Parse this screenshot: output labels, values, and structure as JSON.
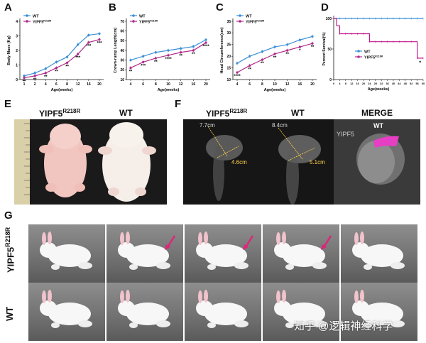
{
  "panels": {
    "A": "A",
    "B": "B",
    "C": "C",
    "D": "D",
    "E": "E",
    "F": "F",
    "G": "G"
  },
  "legend": {
    "wt": "WT",
    "mut_base": "YIPF5",
    "mut_sup": "R218R"
  },
  "chart_data": [
    {
      "type": "line",
      "ylabel": "Body Mass (Kg)",
      "xlabel": "Age(weeks)",
      "x": [
        1,
        2,
        4,
        6,
        8,
        12,
        16,
        20
      ],
      "xticks": [
        "1",
        "2",
        "4",
        "6",
        "8",
        "12",
        "16",
        "20"
      ],
      "ylim": [
        0,
        4
      ],
      "yticks": [
        "0",
        "1",
        "2",
        "3",
        "4"
      ],
      "series": [
        {
          "name": "WT",
          "values": [
            0.25,
            0.45,
            0.75,
            1.2,
            1.55,
            2.4,
            3.05,
            3.15
          ],
          "color": "#3a8fd6"
        },
        {
          "name": "YIPF5R218R",
          "values": [
            0.12,
            0.25,
            0.45,
            0.8,
            1.15,
            1.75,
            2.55,
            2.75
          ],
          "color": "#b02a8a"
        }
      ],
      "significance": [
        {
          "x": 1,
          "label": "**"
        },
        {
          "x": 2,
          "label": "**"
        },
        {
          "x": 4,
          "label": "**"
        },
        {
          "x": 6,
          "label": "**"
        },
        {
          "x": 8,
          "label": "**"
        },
        {
          "x": 12,
          "label": "***"
        },
        {
          "x": 16,
          "label": "***"
        },
        {
          "x": 20,
          "label": "***"
        }
      ]
    },
    {
      "type": "line",
      "ylabel": "Crown-rump Length(cm)",
      "xlabel": "Age(weeks)",
      "x": [
        4,
        6,
        8,
        10,
        12,
        16,
        20
      ],
      "xticks": [
        "4",
        "6",
        "8",
        "10",
        "12",
        "16",
        "20"
      ],
      "ylim": [
        10,
        70
      ],
      "yticks": [
        "10",
        "20",
        "30",
        "40",
        "50",
        "60",
        "70"
      ],
      "series": [
        {
          "name": "WT",
          "values": [
            30,
            34,
            38,
            40,
            42,
            44,
            51
          ],
          "color": "#3a8fd6"
        },
        {
          "name": "YIPF5R218R",
          "values": [
            22,
            28,
            32,
            35,
            38,
            40,
            48
          ],
          "color": "#b02a8a"
        }
      ],
      "significance": [
        {
          "x": 4,
          "label": "**"
        },
        {
          "x": 6,
          "label": "***"
        },
        {
          "x": 8,
          "label": "**"
        },
        {
          "x": 10,
          "label": "****"
        },
        {
          "x": 12,
          "label": "**"
        },
        {
          "x": 16,
          "label": "**"
        },
        {
          "x": 20,
          "label": "****"
        }
      ]
    },
    {
      "type": "line",
      "ylabel": "Head Circumference(cm)",
      "xlabel": "Age(weeks)",
      "x": [
        4,
        6,
        8,
        10,
        12,
        16,
        20
      ],
      "xticks": [
        "4",
        "6",
        "8",
        "10",
        "12",
        "16",
        "20"
      ],
      "ylim": [
        10,
        35
      ],
      "yticks": [
        "10",
        "15",
        "20",
        "25",
        "30",
        "35"
      ],
      "series": [
        {
          "name": "WT",
          "values": [
            17,
            20,
            22,
            24,
            25,
            27,
            28.5
          ],
          "color": "#3a8fd6"
        },
        {
          "name": "YIPF5R218R",
          "values": [
            13,
            16,
            18.5,
            21,
            22.5,
            24,
            25.5
          ],
          "color": "#b02a8a"
        }
      ],
      "significance": [
        {
          "x": 4,
          "label": "****"
        },
        {
          "x": 6,
          "label": "**"
        },
        {
          "x": 8,
          "label": "**"
        },
        {
          "x": 10,
          "label": "**"
        },
        {
          "x": 12,
          "label": "**"
        },
        {
          "x": 16,
          "label": "*"
        },
        {
          "x": 20,
          "label": "**"
        }
      ]
    },
    {
      "type": "line",
      "ylabel": "Percent Survival(%)",
      "xlabel": "Age(weeks)",
      "xticks": [
        "0",
        "4",
        "8",
        "12",
        "16",
        "20",
        "24",
        "28",
        "32",
        "36",
        "40",
        "44",
        "48",
        "52",
        "56",
        "60"
      ],
      "xlim": [
        0,
        60
      ],
      "ylim": [
        0,
        100
      ],
      "yticks": [
        "0",
        "50",
        "100"
      ],
      "series": [
        {
          "name": "WT",
          "x": [
            0,
            60
          ],
          "values": [
            100,
            100
          ],
          "color": "#3a8fd6"
        },
        {
          "name": "YIPF5R218R",
          "x": [
            0,
            2,
            2,
            4,
            4,
            24,
            24,
            56,
            56,
            60
          ],
          "values": [
            100,
            100,
            88,
            88,
            75,
            75,
            62,
            62,
            35,
            35
          ],
          "color": "#c2188a"
        }
      ],
      "significance": [
        {
          "x": 58,
          "label": "*"
        }
      ]
    }
  ],
  "E": {
    "label_mut_base": "YIPF5",
    "label_mut_sup": "R218R",
    "label_wt": "WT"
  },
  "F": {
    "label_mut_base": "YIPF5",
    "label_mut_sup": "R218R",
    "label_wt": "WT",
    "label_merge": "MERGE",
    "mut_length": "7.7cm",
    "mut_width": "4.6cm",
    "wt_length": "8.4cm",
    "wt_width": "5.1cm",
    "merge_wt": "WT",
    "merge_mut": "YIPF5"
  },
  "G": {
    "row1_base": "YIPF5",
    "row1_sup": "R218R",
    "row2": "WT"
  },
  "watermark": "知乎 @逻辑神经科学"
}
